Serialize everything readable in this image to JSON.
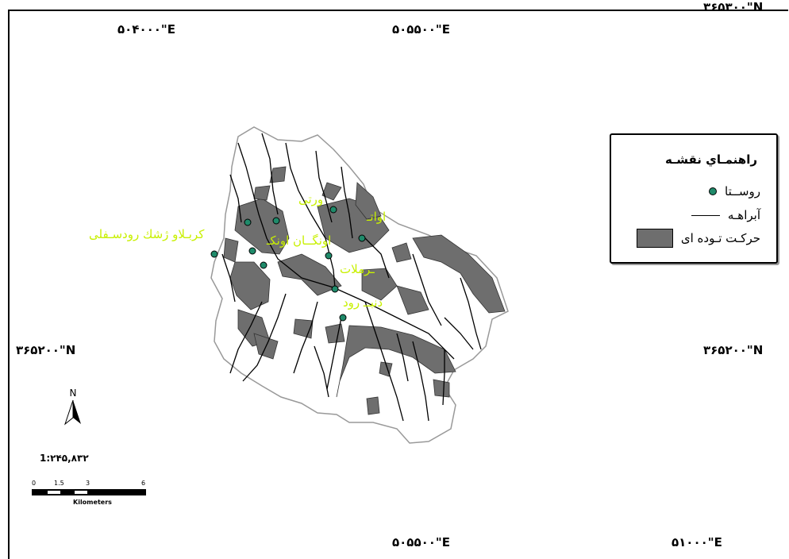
{
  "coordinates": {
    "top_left_lon": "۵۰۴۰۰۰\"E",
    "top_center_lon": "۵۰۵۵۰۰\"E",
    "top_right_lat": "۳۶۵۳۰۰\"N",
    "left_lat": "۳۶۵۲۰۰\"N",
    "right_lat": "۳۶۵۲۰۰\"N",
    "bottom_center_lon": "۵۰۵۵۰۰\"E",
    "bottom_right_lon": "۵۱۰۰۰\"E"
  },
  "legend": {
    "title": "راهنمـاي نقشـه",
    "village_label": "روســتا",
    "stream_label": "آبراهـه",
    "landslide_label": "حركـت تـوده اى"
  },
  "villages": [
    "ورتی",
    "اواتـ",
    "كربـلاو ژشك رودسـفلى",
    "اونگــان اونكـ",
    "ـرملات",
    "دنبــ رود"
  ],
  "north_arrow": {
    "letter": "N"
  },
  "scale": {
    "ratio": "1:۲۴۵,۸۳۲",
    "ticks": [
      "0",
      "1.5",
      "3",
      "6"
    ],
    "units": "Kilometers"
  },
  "colors": {
    "landslide": "#6e6e6e",
    "village_dot": "#1f8a6a",
    "label": "#c8f000"
  }
}
